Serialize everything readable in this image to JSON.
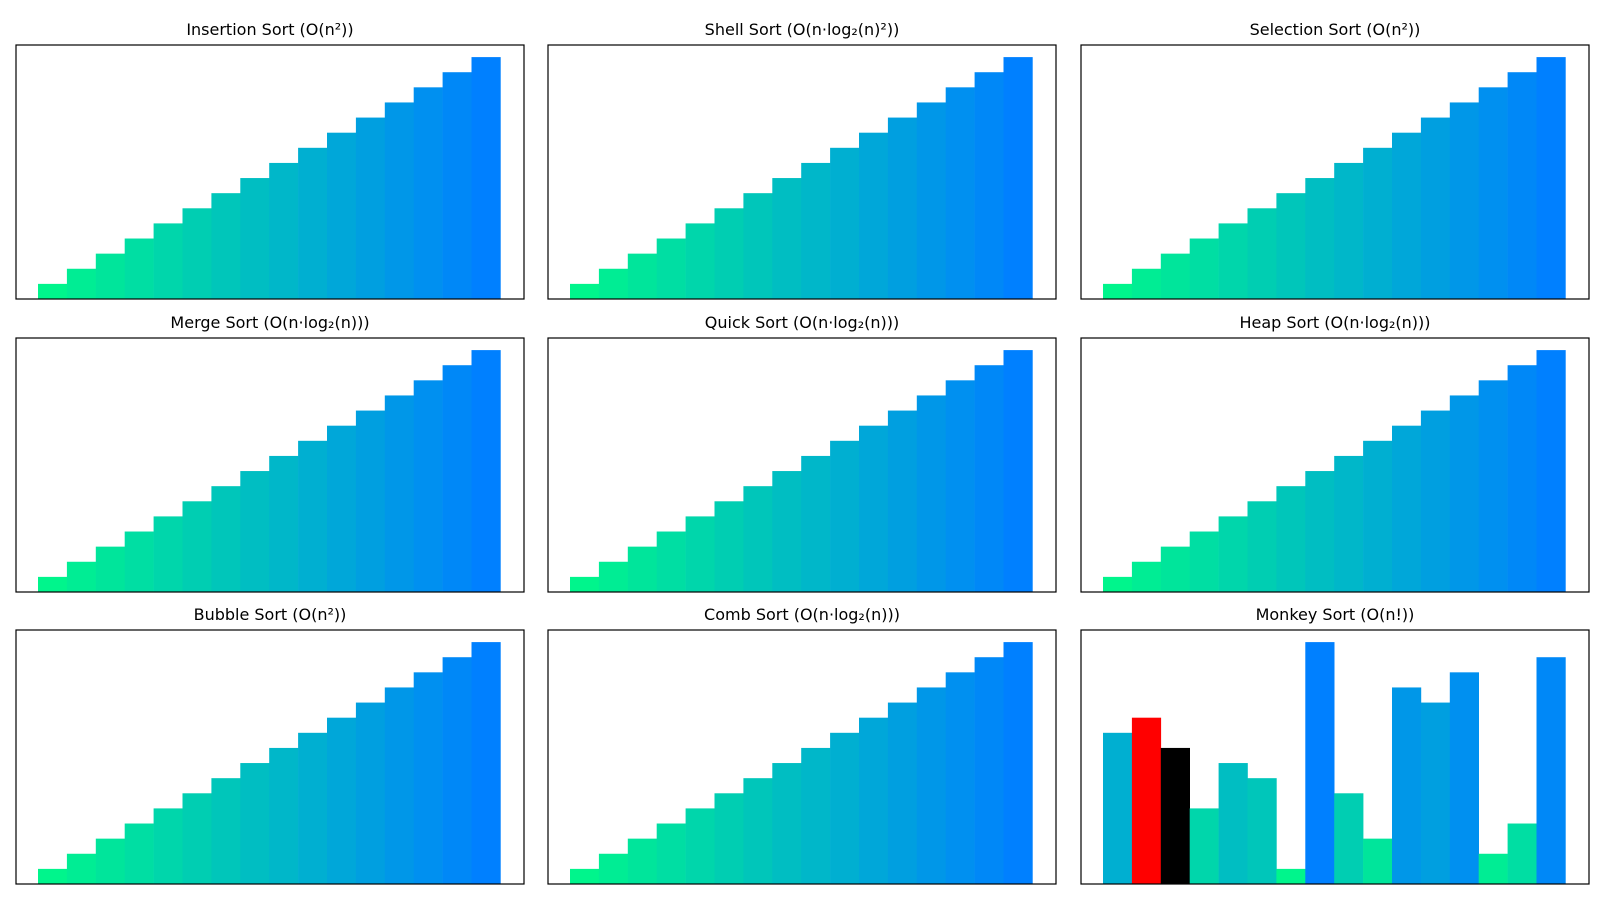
{
  "figure": {
    "background": "#ffffff"
  },
  "colors": {
    "gradient_start": "#00f58c",
    "gradient_end": "#0080ff",
    "highlight_primary": "#ff0000",
    "highlight_secondary": "#000000"
  },
  "chart_data": [
    {
      "type": "bar",
      "title": "Insertion Sort (O(n²))",
      "values": [
        1,
        2,
        3,
        4,
        5,
        6,
        7,
        8,
        9,
        10,
        11,
        12,
        13,
        14,
        15,
        16
      ],
      "ylim": [
        0,
        16.8
      ],
      "highlights": []
    },
    {
      "type": "bar",
      "title": "Shell Sort (O(n·log₂(n)²))",
      "values": [
        1,
        2,
        3,
        4,
        5,
        6,
        7,
        8,
        9,
        10,
        11,
        12,
        13,
        14,
        15,
        16
      ],
      "ylim": [
        0,
        16.8
      ],
      "highlights": []
    },
    {
      "type": "bar",
      "title": "Selection Sort (O(n²))",
      "values": [
        1,
        2,
        3,
        4,
        5,
        6,
        7,
        8,
        9,
        10,
        11,
        12,
        13,
        14,
        15,
        16
      ],
      "ylim": [
        0,
        16.8
      ],
      "highlights": []
    },
    {
      "type": "bar",
      "title": "Merge Sort (O(n·log₂(n)))",
      "values": [
        1,
        2,
        3,
        4,
        5,
        6,
        7,
        8,
        9,
        10,
        11,
        12,
        13,
        14,
        15,
        16
      ],
      "ylim": [
        0,
        16.8
      ],
      "highlights": []
    },
    {
      "type": "bar",
      "title": "Quick Sort (O(n·log₂(n)))",
      "values": [
        1,
        2,
        3,
        4,
        5,
        6,
        7,
        8,
        9,
        10,
        11,
        12,
        13,
        14,
        15,
        16
      ],
      "ylim": [
        0,
        16.8
      ],
      "highlights": []
    },
    {
      "type": "bar",
      "title": "Heap Sort (O(n·log₂(n)))",
      "values": [
        1,
        2,
        3,
        4,
        5,
        6,
        7,
        8,
        9,
        10,
        11,
        12,
        13,
        14,
        15,
        16
      ],
      "ylim": [
        0,
        16.8
      ],
      "highlights": []
    },
    {
      "type": "bar",
      "title": "Bubble Sort (O(n²))",
      "values": [
        1,
        2,
        3,
        4,
        5,
        6,
        7,
        8,
        9,
        10,
        11,
        12,
        13,
        14,
        15,
        16
      ],
      "ylim": [
        0,
        16.8
      ],
      "highlights": []
    },
    {
      "type": "bar",
      "title": "Comb Sort (O(n·log₂(n)))",
      "values": [
        1,
        2,
        3,
        4,
        5,
        6,
        7,
        8,
        9,
        10,
        11,
        12,
        13,
        14,
        15,
        16
      ],
      "ylim": [
        0,
        16.8
      ],
      "highlights": []
    },
    {
      "type": "bar",
      "title": "Monkey Sort (O(n!))",
      "values": [
        10,
        11,
        9,
        5,
        8,
        7,
        1,
        16,
        6,
        3,
        13,
        12,
        14,
        2,
        4,
        15
      ],
      "ylim": [
        0,
        16.8
      ],
      "highlights": [
        {
          "index": 1,
          "color": "#ff0000"
        },
        {
          "index": 2,
          "color": "#000000"
        }
      ]
    }
  ]
}
